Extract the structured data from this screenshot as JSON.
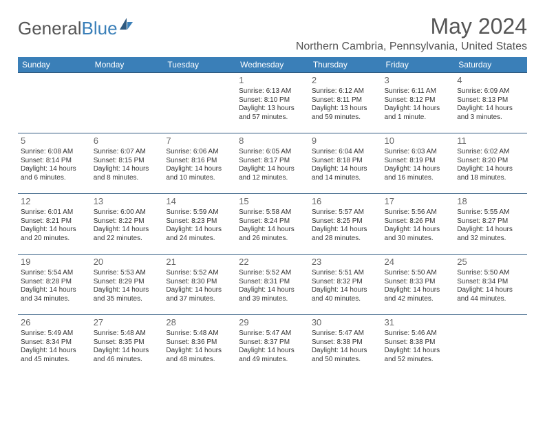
{
  "logo": {
    "part1": "General",
    "part2": "Blue"
  },
  "title": "May 2024",
  "location": "Northern Cambria, Pennsylvania, United States",
  "colors": {
    "header_bg": "#3a7fb8",
    "header_text": "#ffffff",
    "border": "#2f5a80",
    "text": "#333333",
    "title_text": "#555555"
  },
  "header_fontsize": 12,
  "cell_fontsize": 10,
  "daynum_fontsize": 13,
  "days": [
    "Sunday",
    "Monday",
    "Tuesday",
    "Wednesday",
    "Thursday",
    "Friday",
    "Saturday"
  ],
  "weeks": [
    [
      null,
      null,
      null,
      {
        "n": "1",
        "sr": "Sunrise: 6:13 AM",
        "ss": "Sunset: 8:10 PM",
        "dl1": "Daylight: 13 hours",
        "dl2": "and 57 minutes."
      },
      {
        "n": "2",
        "sr": "Sunrise: 6:12 AM",
        "ss": "Sunset: 8:11 PM",
        "dl1": "Daylight: 13 hours",
        "dl2": "and 59 minutes."
      },
      {
        "n": "3",
        "sr": "Sunrise: 6:11 AM",
        "ss": "Sunset: 8:12 PM",
        "dl1": "Daylight: 14 hours",
        "dl2": "and 1 minute."
      },
      {
        "n": "4",
        "sr": "Sunrise: 6:09 AM",
        "ss": "Sunset: 8:13 PM",
        "dl1": "Daylight: 14 hours",
        "dl2": "and 3 minutes."
      }
    ],
    [
      {
        "n": "5",
        "sr": "Sunrise: 6:08 AM",
        "ss": "Sunset: 8:14 PM",
        "dl1": "Daylight: 14 hours",
        "dl2": "and 6 minutes."
      },
      {
        "n": "6",
        "sr": "Sunrise: 6:07 AM",
        "ss": "Sunset: 8:15 PM",
        "dl1": "Daylight: 14 hours",
        "dl2": "and 8 minutes."
      },
      {
        "n": "7",
        "sr": "Sunrise: 6:06 AM",
        "ss": "Sunset: 8:16 PM",
        "dl1": "Daylight: 14 hours",
        "dl2": "and 10 minutes."
      },
      {
        "n": "8",
        "sr": "Sunrise: 6:05 AM",
        "ss": "Sunset: 8:17 PM",
        "dl1": "Daylight: 14 hours",
        "dl2": "and 12 minutes."
      },
      {
        "n": "9",
        "sr": "Sunrise: 6:04 AM",
        "ss": "Sunset: 8:18 PM",
        "dl1": "Daylight: 14 hours",
        "dl2": "and 14 minutes."
      },
      {
        "n": "10",
        "sr": "Sunrise: 6:03 AM",
        "ss": "Sunset: 8:19 PM",
        "dl1": "Daylight: 14 hours",
        "dl2": "and 16 minutes."
      },
      {
        "n": "11",
        "sr": "Sunrise: 6:02 AM",
        "ss": "Sunset: 8:20 PM",
        "dl1": "Daylight: 14 hours",
        "dl2": "and 18 minutes."
      }
    ],
    [
      {
        "n": "12",
        "sr": "Sunrise: 6:01 AM",
        "ss": "Sunset: 8:21 PM",
        "dl1": "Daylight: 14 hours",
        "dl2": "and 20 minutes."
      },
      {
        "n": "13",
        "sr": "Sunrise: 6:00 AM",
        "ss": "Sunset: 8:22 PM",
        "dl1": "Daylight: 14 hours",
        "dl2": "and 22 minutes."
      },
      {
        "n": "14",
        "sr": "Sunrise: 5:59 AM",
        "ss": "Sunset: 8:23 PM",
        "dl1": "Daylight: 14 hours",
        "dl2": "and 24 minutes."
      },
      {
        "n": "15",
        "sr": "Sunrise: 5:58 AM",
        "ss": "Sunset: 8:24 PM",
        "dl1": "Daylight: 14 hours",
        "dl2": "and 26 minutes."
      },
      {
        "n": "16",
        "sr": "Sunrise: 5:57 AM",
        "ss": "Sunset: 8:25 PM",
        "dl1": "Daylight: 14 hours",
        "dl2": "and 28 minutes."
      },
      {
        "n": "17",
        "sr": "Sunrise: 5:56 AM",
        "ss": "Sunset: 8:26 PM",
        "dl1": "Daylight: 14 hours",
        "dl2": "and 30 minutes."
      },
      {
        "n": "18",
        "sr": "Sunrise: 5:55 AM",
        "ss": "Sunset: 8:27 PM",
        "dl1": "Daylight: 14 hours",
        "dl2": "and 32 minutes."
      }
    ],
    [
      {
        "n": "19",
        "sr": "Sunrise: 5:54 AM",
        "ss": "Sunset: 8:28 PM",
        "dl1": "Daylight: 14 hours",
        "dl2": "and 34 minutes."
      },
      {
        "n": "20",
        "sr": "Sunrise: 5:53 AM",
        "ss": "Sunset: 8:29 PM",
        "dl1": "Daylight: 14 hours",
        "dl2": "and 35 minutes."
      },
      {
        "n": "21",
        "sr": "Sunrise: 5:52 AM",
        "ss": "Sunset: 8:30 PM",
        "dl1": "Daylight: 14 hours",
        "dl2": "and 37 minutes."
      },
      {
        "n": "22",
        "sr": "Sunrise: 5:52 AM",
        "ss": "Sunset: 8:31 PM",
        "dl1": "Daylight: 14 hours",
        "dl2": "and 39 minutes."
      },
      {
        "n": "23",
        "sr": "Sunrise: 5:51 AM",
        "ss": "Sunset: 8:32 PM",
        "dl1": "Daylight: 14 hours",
        "dl2": "and 40 minutes."
      },
      {
        "n": "24",
        "sr": "Sunrise: 5:50 AM",
        "ss": "Sunset: 8:33 PM",
        "dl1": "Daylight: 14 hours",
        "dl2": "and 42 minutes."
      },
      {
        "n": "25",
        "sr": "Sunrise: 5:50 AM",
        "ss": "Sunset: 8:34 PM",
        "dl1": "Daylight: 14 hours",
        "dl2": "and 44 minutes."
      }
    ],
    [
      {
        "n": "26",
        "sr": "Sunrise: 5:49 AM",
        "ss": "Sunset: 8:34 PM",
        "dl1": "Daylight: 14 hours",
        "dl2": "and 45 minutes."
      },
      {
        "n": "27",
        "sr": "Sunrise: 5:48 AM",
        "ss": "Sunset: 8:35 PM",
        "dl1": "Daylight: 14 hours",
        "dl2": "and 46 minutes."
      },
      {
        "n": "28",
        "sr": "Sunrise: 5:48 AM",
        "ss": "Sunset: 8:36 PM",
        "dl1": "Daylight: 14 hours",
        "dl2": "and 48 minutes."
      },
      {
        "n": "29",
        "sr": "Sunrise: 5:47 AM",
        "ss": "Sunset: 8:37 PM",
        "dl1": "Daylight: 14 hours",
        "dl2": "and 49 minutes."
      },
      {
        "n": "30",
        "sr": "Sunrise: 5:47 AM",
        "ss": "Sunset: 8:38 PM",
        "dl1": "Daylight: 14 hours",
        "dl2": "and 50 minutes."
      },
      {
        "n": "31",
        "sr": "Sunrise: 5:46 AM",
        "ss": "Sunset: 8:38 PM",
        "dl1": "Daylight: 14 hours",
        "dl2": "and 52 minutes."
      },
      null
    ]
  ]
}
